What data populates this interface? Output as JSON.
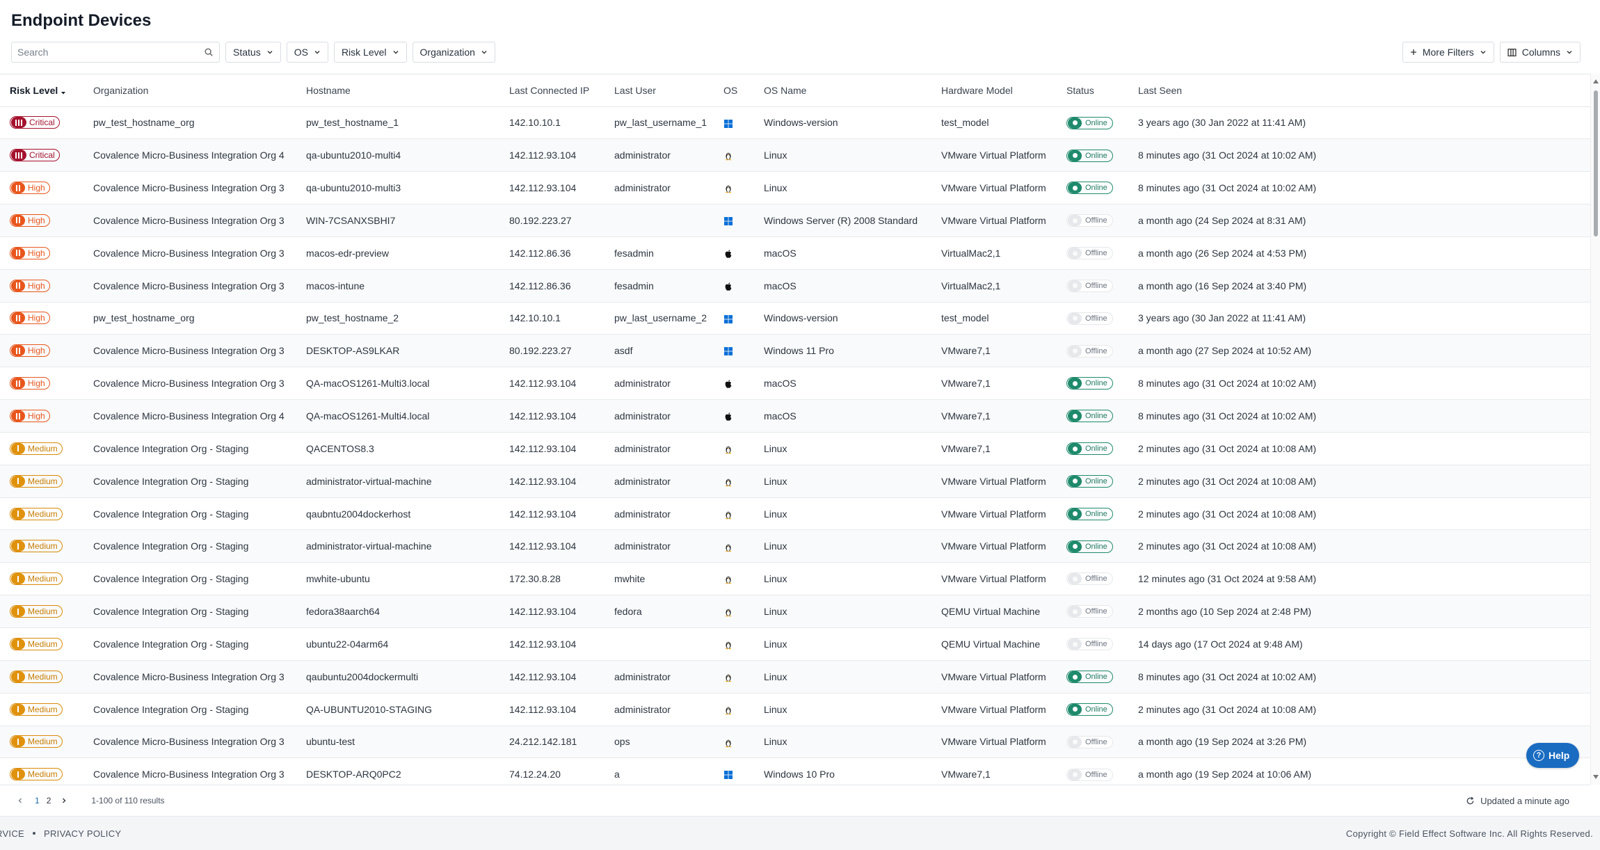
{
  "page_title": "Endpoint Devices",
  "search": {
    "placeholder": "Search"
  },
  "filters": [
    "Status",
    "OS",
    "Risk Level",
    "Organization"
  ],
  "more_filters_label": "More Filters",
  "columns_label": "Columns",
  "table": {
    "headers": [
      "Risk Level",
      "Organization",
      "Hostname",
      "Last Connected IP",
      "Last User",
      "OS",
      "OS Name",
      "Hardware Model",
      "Status",
      "Last Seen"
    ],
    "rows": [
      {
        "risk": "Critical",
        "org": "pw_test_hostname_org",
        "host": "pw_test_hostname_1",
        "ip": "142.10.10.1",
        "user": "pw_last_username_1",
        "os": "windows-icon",
        "os_name": "Windows-version",
        "hw": "test_model",
        "status": "Online",
        "seen": "3 years ago (30 Jan 2022 at 11:41 AM)"
      },
      {
        "risk": "Critical",
        "org": "Covalence Micro-Business Integration Org 4",
        "host": "qa-ubuntu2010-multi4",
        "ip": "142.112.93.104",
        "user": "administrator",
        "os": "linux-icon",
        "os_name": "Linux",
        "hw": "VMware Virtual Platform",
        "status": "Online",
        "seen": "8 minutes ago (31 Oct 2024 at 10:02 AM)"
      },
      {
        "risk": "High",
        "org": "Covalence Micro-Business Integration Org 3",
        "host": "qa-ubuntu2010-multi3",
        "ip": "142.112.93.104",
        "user": "administrator",
        "os": "linux-icon",
        "os_name": "Linux",
        "hw": "VMware Virtual Platform",
        "status": "Online",
        "seen": "8 minutes ago (31 Oct 2024 at 10:02 AM)"
      },
      {
        "risk": "High",
        "org": "Covalence Micro-Business Integration Org 3",
        "host": "WIN-7CSANXSBHI7",
        "ip": "80.192.223.27",
        "user": "",
        "os": "windows-icon",
        "os_name": "Windows Server (R) 2008 Standard",
        "hw": "VMware Virtual Platform",
        "status": "Offline",
        "seen": "a month ago (24 Sep 2024 at 8:31 AM)"
      },
      {
        "risk": "High",
        "org": "Covalence Micro-Business Integration Org 3",
        "host": "macos-edr-preview",
        "ip": "142.112.86.36",
        "user": "fesadmin",
        "os": "apple-icon",
        "os_name": "macOS",
        "hw": "VirtualMac2,1",
        "status": "Offline",
        "seen": "a month ago (26 Sep 2024 at 4:53 PM)"
      },
      {
        "risk": "High",
        "org": "Covalence Micro-Business Integration Org 3",
        "host": "macos-intune",
        "ip": "142.112.86.36",
        "user": "fesadmin",
        "os": "apple-icon",
        "os_name": "macOS",
        "hw": "VirtualMac2,1",
        "status": "Offline",
        "seen": "a month ago (16 Sep 2024 at 3:40 PM)"
      },
      {
        "risk": "High",
        "org": "pw_test_hostname_org",
        "host": "pw_test_hostname_2",
        "ip": "142.10.10.1",
        "user": "pw_last_username_2",
        "os": "windows-icon",
        "os_name": "Windows-version",
        "hw": "test_model",
        "status": "Offline",
        "seen": "3 years ago (30 Jan 2022 at 11:41 AM)"
      },
      {
        "risk": "High",
        "org": "Covalence Micro-Business Integration Org 3",
        "host": "DESKTOP-AS9LKAR",
        "ip": "80.192.223.27",
        "user": "asdf",
        "os": "windows-icon",
        "os_name": "Windows 11 Pro",
        "hw": "VMware7,1",
        "status": "Offline",
        "seen": "a month ago (27 Sep 2024 at 10:52 AM)"
      },
      {
        "risk": "High",
        "org": "Covalence Micro-Business Integration Org 3",
        "host": "QA-macOS1261-Multi3.local",
        "ip": "142.112.93.104",
        "user": "administrator",
        "os": "apple-icon",
        "os_name": "macOS",
        "hw": "VMware7,1",
        "status": "Online",
        "seen": "8 minutes ago (31 Oct 2024 at 10:02 AM)"
      },
      {
        "risk": "High",
        "org": "Covalence Micro-Business Integration Org 4",
        "host": "QA-macOS1261-Multi4.local",
        "ip": "142.112.93.104",
        "user": "administrator",
        "os": "apple-icon",
        "os_name": "macOS",
        "hw": "VMware7,1",
        "status": "Online",
        "seen": "8 minutes ago (31 Oct 2024 at 10:02 AM)"
      },
      {
        "risk": "Medium",
        "org": "Covalence Integration Org - Staging",
        "host": "QACENTOS8.3",
        "ip": "142.112.93.104",
        "user": "administrator",
        "os": "linux-icon",
        "os_name": "Linux",
        "hw": "VMware7,1",
        "status": "Online",
        "seen": "2 minutes ago (31 Oct 2024 at 10:08 AM)"
      },
      {
        "risk": "Medium",
        "org": "Covalence Integration Org - Staging",
        "host": "administrator-virtual-machine",
        "ip": "142.112.93.104",
        "user": "administrator",
        "os": "linux-icon",
        "os_name": "Linux",
        "hw": "VMware Virtual Platform",
        "status": "Online",
        "seen": "2 minutes ago (31 Oct 2024 at 10:08 AM)"
      },
      {
        "risk": "Medium",
        "org": "Covalence Integration Org - Staging",
        "host": "qaubntu2004dockerhost",
        "ip": "142.112.93.104",
        "user": "administrator",
        "os": "linux-icon",
        "os_name": "Linux",
        "hw": "VMware Virtual Platform",
        "status": "Online",
        "seen": "2 minutes ago (31 Oct 2024 at 10:08 AM)"
      },
      {
        "risk": "Medium",
        "org": "Covalence Integration Org - Staging",
        "host": "administrator-virtual-machine",
        "ip": "142.112.93.104",
        "user": "administrator",
        "os": "linux-icon",
        "os_name": "Linux",
        "hw": "VMware Virtual Platform",
        "status": "Online",
        "seen": "2 minutes ago (31 Oct 2024 at 10:08 AM)"
      },
      {
        "risk": "Medium",
        "org": "Covalence Integration Org - Staging",
        "host": "mwhite-ubuntu",
        "ip": "172.30.8.28",
        "user": "mwhite",
        "os": "linux-icon",
        "os_name": "Linux",
        "hw": "VMware Virtual Platform",
        "status": "Offline",
        "seen": "12 minutes ago (31 Oct 2024 at 9:58 AM)"
      },
      {
        "risk": "Medium",
        "org": "Covalence Integration Org - Staging",
        "host": "fedora38aarch64",
        "ip": "142.112.93.104",
        "user": "fedora",
        "os": "linux-icon",
        "os_name": "Linux",
        "hw": "QEMU Virtual Machine",
        "status": "Offline",
        "seen": "2 months ago (10 Sep 2024 at 2:48 PM)"
      },
      {
        "risk": "Medium",
        "org": "Covalence Integration Org - Staging",
        "host": "ubuntu22-04arm64",
        "ip": "142.112.93.104",
        "user": "",
        "os": "linux-icon",
        "os_name": "Linux",
        "hw": "QEMU Virtual Machine",
        "status": "Offline",
        "seen": "14 days ago (17 Oct 2024 at 9:48 AM)"
      },
      {
        "risk": "Medium",
        "org": "Covalence Micro-Business Integration Org 3",
        "host": "qaubuntu2004dockermulti",
        "ip": "142.112.93.104",
        "user": "administrator",
        "os": "linux-icon",
        "os_name": "Linux",
        "hw": "VMware Virtual Platform",
        "status": "Online",
        "seen": "8 minutes ago (31 Oct 2024 at 10:02 AM)"
      },
      {
        "risk": "Medium",
        "org": "Covalence Integration Org - Staging",
        "host": "QA-UBUNTU2010-STAGING",
        "ip": "142.112.93.104",
        "user": "administrator",
        "os": "linux-icon",
        "os_name": "Linux",
        "hw": "VMware Virtual Platform",
        "status": "Online",
        "seen": "2 minutes ago (31 Oct 2024 at 10:08 AM)"
      },
      {
        "risk": "Medium",
        "org": "Covalence Micro-Business Integration Org 3",
        "host": "ubuntu-test",
        "ip": "24.212.142.181",
        "user": "ops",
        "os": "linux-icon",
        "os_name": "Linux",
        "hw": "VMware Virtual Platform",
        "status": "Offline",
        "seen": "a month ago (19 Sep 2024 at 3:26 PM)"
      },
      {
        "risk": "Medium",
        "org": "Covalence Micro-Business Integration Org 3",
        "host": "DESKTOP-ARQ0PC2",
        "ip": "74.12.24.20",
        "user": "a",
        "os": "windows-icon",
        "os_name": "Windows 10 Pro",
        "hw": "VMware7,1",
        "status": "Offline",
        "seen": "a month ago (19 Sep 2024 at 10:06 AM)"
      }
    ]
  },
  "pagination": {
    "pages": [
      "1",
      "2"
    ],
    "current": "1",
    "results": "1-100 of 110 results"
  },
  "updated_text": "Updated a minute ago",
  "help_label": "Help",
  "footer": {
    "links": [
      "RVICE",
      "PRIVACY POLICY"
    ],
    "copyright": "Copyright © Field Effect Software Inc. All Rights Reserved."
  },
  "colors": {
    "critical": "#a5122e",
    "high": "#e8561d",
    "medium": "#e0920d",
    "online": "#1f8a6c",
    "offline": "#e6e8eb",
    "accent": "#1a6cc1"
  }
}
